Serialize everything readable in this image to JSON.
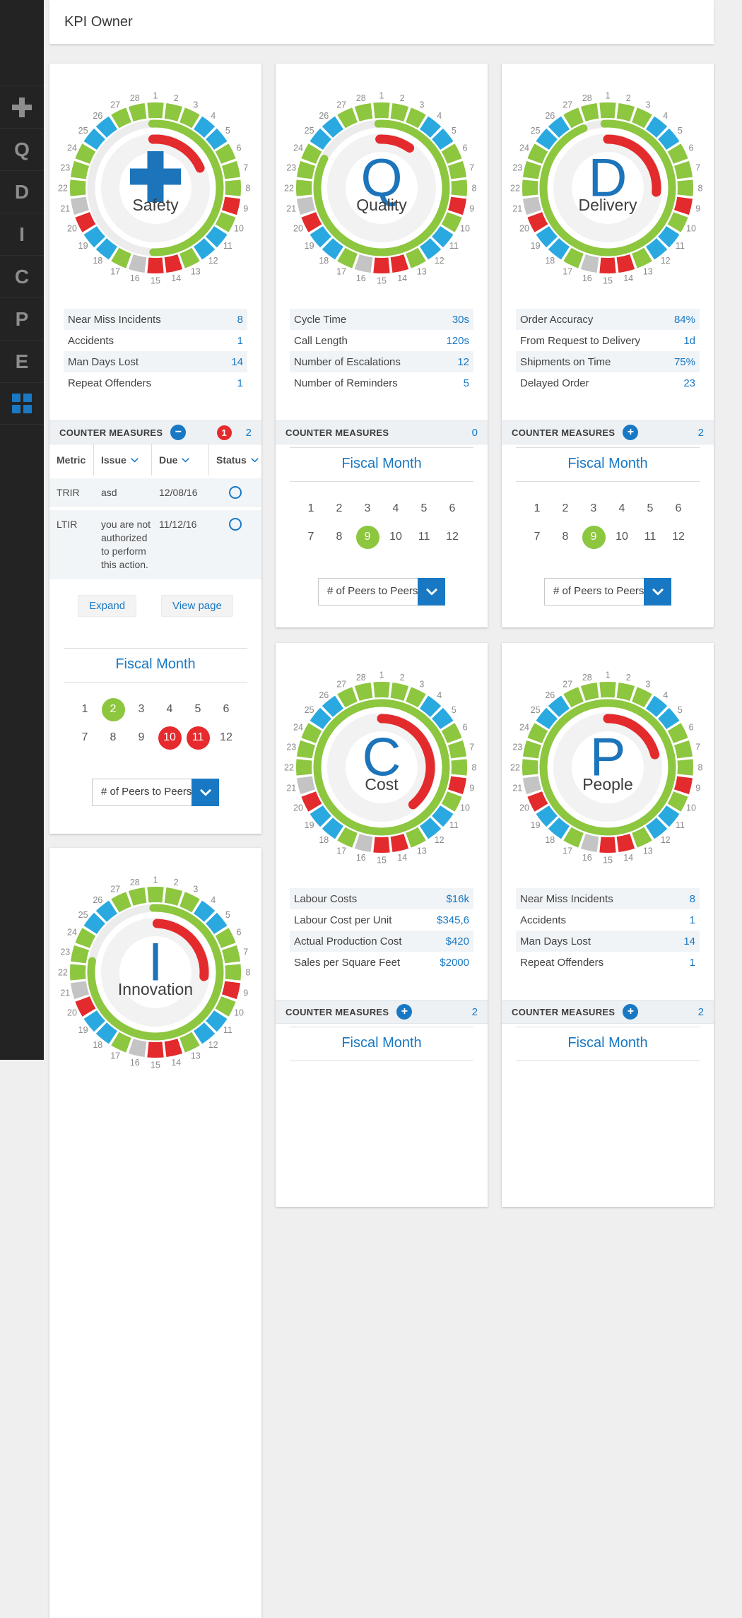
{
  "header": {
    "title": "KPI Owner"
  },
  "sidebar": {
    "items": [
      {
        "id": "add",
        "icon": "plus-icon",
        "label": ""
      },
      {
        "id": "quality",
        "label": "Q"
      },
      {
        "id": "delivery",
        "label": "D"
      },
      {
        "id": "innovation",
        "label": "I"
      },
      {
        "id": "cost",
        "label": "C"
      },
      {
        "id": "people",
        "label": "P"
      },
      {
        "id": "environment",
        "label": "E"
      },
      {
        "id": "dashboard",
        "icon": "grid-icon",
        "label": ""
      }
    ]
  },
  "colors": {
    "green": "#8dc63f",
    "blue": "#2aa9e0",
    "red": "#e32a2c",
    "gray": "#c4c4c4",
    "track": "#ececec",
    "track_inner": "#f2f2f2",
    "letter_blue": "#1c74ba",
    "accent": "#1878c4",
    "tick": "#8a8a8a",
    "title_dark": "#3e3e3e"
  },
  "gauge": {
    "segment_colors": [
      "green",
      "green",
      "green",
      "blue",
      "blue",
      "green",
      "green",
      "green",
      "red",
      "green",
      "blue",
      "blue",
      "green",
      "red",
      "red",
      "gray",
      "green",
      "blue",
      "blue",
      "red",
      "gray",
      "green",
      "green",
      "green",
      "blue",
      "blue",
      "green",
      "green"
    ],
    "tick_labels": [
      "1",
      "2",
      "3",
      "4",
      "5",
      "6",
      "7",
      "8",
      "9",
      "10",
      "11",
      "12",
      "13",
      "14",
      "15",
      "16",
      "17",
      "18",
      "19",
      "20",
      "21",
      "22",
      "23",
      "24",
      "25",
      "26",
      "27",
      "28"
    ]
  },
  "cards": [
    {
      "id": "safety",
      "letter": "plus",
      "title": "Safety",
      "arc_green": [
        -3,
        182
      ],
      "arc_red": [
        -3,
        66
      ],
      "metrics": [
        {
          "label": "Near Miss Incidents",
          "value": "8"
        },
        {
          "label": "Accidents",
          "value": "1"
        },
        {
          "label": "Man Days Lost",
          "value": "14"
        },
        {
          "label": "Repeat Offenders",
          "value": "1"
        }
      ],
      "counter": {
        "label": "COUNTER MEASURES",
        "toggle": "minus",
        "toggle_glyph": "−",
        "alert": "1",
        "count": "2"
      },
      "cm_table": {
        "headers": [
          {
            "label": "Metric",
            "sortable": false
          },
          {
            "label": "Issue",
            "sortable": true
          },
          {
            "label": "Due",
            "sortable": true
          },
          {
            "label": "Status",
            "sortable": true
          }
        ],
        "rows": [
          {
            "metric": "TRIR",
            "issue": "asd",
            "due": "12/08/16"
          },
          {
            "metric": "LTIR",
            "issue": "you are not authorized to perform this action.",
            "due": "11/12/16"
          }
        ]
      },
      "actions": [
        {
          "id": "expand",
          "label": "Expand"
        },
        {
          "id": "view-page",
          "label": "View page"
        }
      ],
      "fiscal": {
        "title": "Fiscal Month",
        "months": [
          "1",
          "2",
          "3",
          "4",
          "5",
          "6",
          "7",
          "8",
          "9",
          "10",
          "11",
          "12"
        ],
        "green": [
          "2"
        ],
        "red": [
          "10",
          "11"
        ],
        "dropdown": "# of Peers to Peers"
      }
    },
    {
      "id": "quality",
      "letter": "Q",
      "title": "Quality",
      "arc_green": [
        -3,
        297
      ],
      "arc_red": [
        -2,
        35
      ],
      "metrics": [
        {
          "label": "Cycle Time",
          "value": "30s"
        },
        {
          "label": "Call Length",
          "value": "120s"
        },
        {
          "label": "Number of Escalations",
          "value": "12"
        },
        {
          "label": "Number of Reminders",
          "value": "5"
        }
      ],
      "counter": {
        "label": "COUNTER MEASURES",
        "toggle": null,
        "toggle_glyph": "",
        "alert": null,
        "count": "0"
      },
      "fiscal": {
        "title": "Fiscal Month",
        "months": [
          "1",
          "2",
          "3",
          "4",
          "5",
          "6",
          "7",
          "8",
          "9",
          "10",
          "11",
          "12"
        ],
        "green": [
          "9"
        ],
        "red": [],
        "dropdown": "# of Peers to Peers"
      }
    },
    {
      "id": "delivery",
      "letter": "D",
      "title": "Delivery",
      "arc_green": [
        -3,
        338
      ],
      "arc_red": [
        0,
        95
      ],
      "metrics": [
        {
          "label": "Order Accuracy",
          "value": "84%"
        },
        {
          "label": "From Request to Delivery",
          "value": "1d"
        },
        {
          "label": "Shipments on Time",
          "value": "75%"
        },
        {
          "label": "Delayed Order",
          "value": "23"
        }
      ],
      "counter": {
        "label": "COUNTER MEASURES",
        "toggle": "plus",
        "toggle_glyph": "+",
        "alert": null,
        "count": "2"
      },
      "fiscal": {
        "title": "Fiscal Month",
        "months": [
          "1",
          "2",
          "3",
          "4",
          "5",
          "6",
          "7",
          "8",
          "9",
          "10",
          "11",
          "12"
        ],
        "green": [
          "9"
        ],
        "red": [],
        "dropdown": "# of Peers to Peers"
      }
    },
    {
      "id": "cost",
      "letter": "C",
      "title": "Cost",
      "arc_green": [
        0,
        360
      ],
      "arc_red": [
        0,
        140
      ],
      "metrics": [
        {
          "label": "Labour Costs",
          "value": "$16k"
        },
        {
          "label": "Labour Cost per Unit",
          "value": "$345,6"
        },
        {
          "label": "Actual Production Cost",
          "value": "$420"
        },
        {
          "label": "Sales per Square Feet",
          "value": "$2000"
        }
      ],
      "counter": {
        "label": "COUNTER MEASURES",
        "toggle": "plus",
        "toggle_glyph": "+",
        "alert": null,
        "count": "2"
      },
      "fiscal": {
        "title": "Fiscal Month",
        "months": [],
        "green": [],
        "red": [],
        "dropdown": null
      }
    },
    {
      "id": "people",
      "letter": "P",
      "title": "People",
      "arc_green": [
        0,
        360
      ],
      "arc_red": [
        0,
        75
      ],
      "metrics": [
        {
          "label": "Near Miss Incidents",
          "value": "8"
        },
        {
          "label": "Accidents",
          "value": "1"
        },
        {
          "label": "Man Days Lost",
          "value": "14"
        },
        {
          "label": "Repeat Offenders",
          "value": "1"
        }
      ],
      "counter": {
        "label": "COUNTER MEASURES",
        "toggle": "plus",
        "toggle_glyph": "+",
        "alert": null,
        "count": "2"
      },
      "fiscal": {
        "title": "Fiscal Month",
        "months": [],
        "green": [],
        "red": [],
        "dropdown": null
      }
    },
    {
      "id": "innovation",
      "letter": "I",
      "title": "Innovation",
      "arc_green": [
        -2,
        280
      ],
      "arc_red": [
        2,
        95
      ],
      "metrics": [],
      "counter": null,
      "fiscal": null
    }
  ]
}
